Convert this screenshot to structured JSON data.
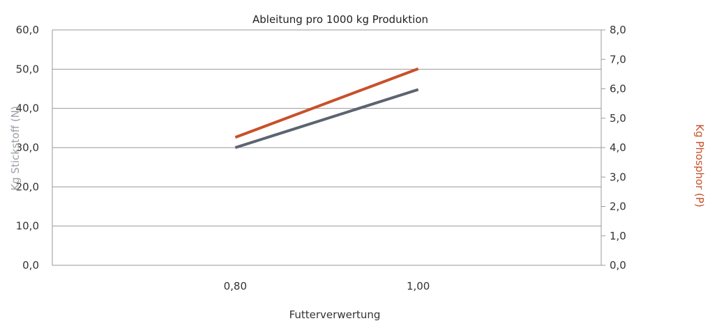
{
  "chart_data": {
    "type": "line",
    "title": "Ableitung pro 1000 kg Produktion",
    "xlabel": "Futterverwertung",
    "ylabel_left": "Kg Stickstoff (N)",
    "ylabel_right": "Kg Phosphor (P)",
    "categories": [
      "0,80",
      "1,00"
    ],
    "y_left": {
      "lim": [
        0,
        60
      ],
      "ticks": [
        "0,0",
        "10,0",
        "20,0",
        "30,0",
        "40,0",
        "50,0",
        "60,0"
      ]
    },
    "y_right": {
      "lim": [
        0,
        8
      ],
      "ticks": [
        "0,0",
        "1,0",
        "2,0",
        "3,0",
        "4,0",
        "5,0",
        "6,0",
        "7,0",
        "8,0"
      ]
    },
    "series": [
      {
        "axis": "left",
        "color": "#5b6470",
        "values": [
          30.0,
          44.8
        ]
      },
      {
        "axis": "right",
        "color": "#c8502a",
        "values": [
          4.35,
          6.68
        ]
      }
    ],
    "grid": true,
    "colors": {
      "gridline": "#9a9a9a",
      "left_label": "#9aa0a6",
      "right_label": "#c8502a"
    }
  }
}
